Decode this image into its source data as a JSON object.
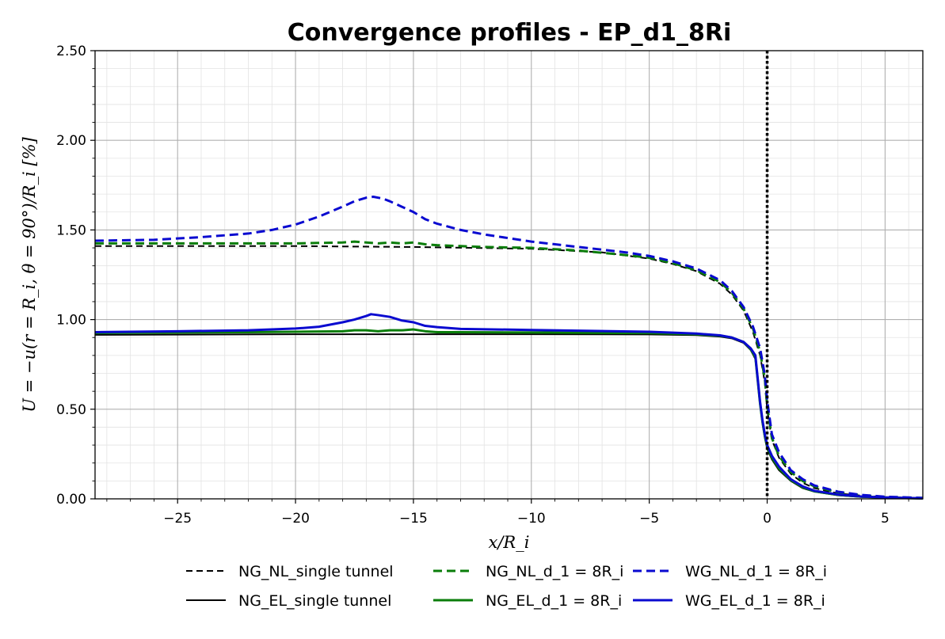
{
  "chart_data": {
    "type": "line",
    "title": "Convergence profiles - EP_d1_8Ri",
    "xlabel": "x/R_i",
    "ylabel": "U = −u(r = R_i, θ = 90°)/R_i [%]",
    "xlim": [
      -28.5,
      6.6
    ],
    "ylim": [
      0,
      2.5
    ],
    "x_ticks": [
      -25,
      -20,
      -15,
      -10,
      -5,
      0,
      5
    ],
    "x_tick_labels": [
      "−25",
      "−20",
      "−15",
      "−10",
      "−5",
      "0",
      "5"
    ],
    "y_ticks": [
      0,
      0.5,
      1.0,
      1.5,
      2.0,
      2.5
    ],
    "y_tick_labels": [
      "0.00",
      "0.50",
      "1.00",
      "1.50",
      "2.00",
      "2.50"
    ],
    "grid": "major and minor",
    "vline": {
      "x": 0,
      "style": "dotted",
      "color": "#000000"
    },
    "legend": {
      "position": "bottom-center",
      "columns": 3
    },
    "series": [
      {
        "name": "NG_NL_single tunnel",
        "color": "#000000",
        "style": "dashed",
        "width": 2,
        "x": [
          -28.5,
          -20,
          -15,
          -10,
          -7,
          -5,
          -4,
          -3,
          -2,
          -1.5,
          -1,
          -0.6,
          -0.3,
          -0.1,
          0,
          0.2,
          0.5,
          1,
          1.5,
          2,
          3,
          4,
          5,
          6.6
        ],
        "y": [
          1.41,
          1.41,
          1.405,
          1.395,
          1.375,
          1.34,
          1.31,
          1.27,
          1.2,
          1.14,
          1.05,
          0.93,
          0.8,
          0.65,
          0.5,
          0.33,
          0.23,
          0.14,
          0.09,
          0.06,
          0.03,
          0.018,
          0.01,
          0.004
        ]
      },
      {
        "name": "NG_EL_single tunnel",
        "color": "#000000",
        "style": "solid",
        "width": 2,
        "x": [
          -28.5,
          -20,
          -10,
          -5,
          -3,
          -2,
          -1.5,
          -1,
          -0.7,
          -0.5,
          -0.4,
          -0.3,
          -0.2,
          -0.1,
          0,
          0.2,
          0.5,
          1,
          1.5,
          2,
          3,
          4,
          5,
          6.6
        ],
        "y": [
          0.915,
          0.918,
          0.918,
          0.917,
          0.913,
          0.905,
          0.895,
          0.87,
          0.83,
          0.78,
          0.65,
          0.52,
          0.42,
          0.34,
          0.28,
          0.22,
          0.16,
          0.1,
          0.06,
          0.04,
          0.02,
          0.01,
          0.006,
          0.002
        ]
      },
      {
        "name": "NG_NL_d_1 = 8R_i",
        "color": "#0a7d0a",
        "style": "dashed",
        "width": 3,
        "x": [
          -28.5,
          -25,
          -22,
          -20,
          -18,
          -17.5,
          -17,
          -16.5,
          -16,
          -15.5,
          -15,
          -14.5,
          -14,
          -13,
          -12,
          -10,
          -8,
          -6,
          -5,
          -4,
          -3,
          -2,
          -1.5,
          -1,
          -0.6,
          -0.3,
          -0.1,
          0,
          0.2,
          0.5,
          1,
          1.5,
          2,
          3,
          4,
          5,
          6.6
        ],
        "y": [
          1.425,
          1.425,
          1.425,
          1.425,
          1.43,
          1.435,
          1.43,
          1.425,
          1.43,
          1.425,
          1.43,
          1.42,
          1.415,
          1.41,
          1.405,
          1.4,
          1.385,
          1.36,
          1.345,
          1.315,
          1.275,
          1.21,
          1.15,
          1.06,
          0.95,
          0.82,
          0.67,
          0.52,
          0.34,
          0.24,
          0.15,
          0.1,
          0.07,
          0.035,
          0.02,
          0.01,
          0.005
        ]
      },
      {
        "name": "NG_EL_d_1 = 8R_i",
        "color": "#0a7d0a",
        "style": "solid",
        "width": 3,
        "x": [
          -28.5,
          -25,
          -22,
          -20,
          -18,
          -17.5,
          -17,
          -16.5,
          -16,
          -15.5,
          -15,
          -14.5,
          -14,
          -13,
          -10,
          -5,
          -3,
          -2,
          -1.5,
          -1,
          -0.7,
          -0.5,
          -0.4,
          -0.3,
          -0.2,
          -0.1,
          0,
          0.2,
          0.5,
          1,
          1.5,
          2,
          3,
          4,
          5,
          6.6
        ],
        "y": [
          0.925,
          0.928,
          0.93,
          0.932,
          0.935,
          0.94,
          0.94,
          0.935,
          0.94,
          0.94,
          0.945,
          0.935,
          0.93,
          0.93,
          0.928,
          0.925,
          0.918,
          0.91,
          0.9,
          0.875,
          0.835,
          0.79,
          0.66,
          0.53,
          0.43,
          0.35,
          0.29,
          0.23,
          0.17,
          0.105,
          0.065,
          0.042,
          0.022,
          0.012,
          0.007,
          0.002
        ]
      },
      {
        "name": "WG_NL_d_1 = 8R_i",
        "color": "#0a0ad0",
        "style": "dashed",
        "width": 3,
        "x": [
          -28.5,
          -26,
          -24,
          -22,
          -21,
          -20,
          -19,
          -18,
          -17.5,
          -17,
          -16.7,
          -16.3,
          -16,
          -15.5,
          -15,
          -14.5,
          -14,
          -13,
          -12,
          -10,
          -8,
          -6,
          -5,
          -4,
          -3,
          -2,
          -1.5,
          -1,
          -0.6,
          -0.3,
          -0.1,
          0,
          0.2,
          0.5,
          1,
          1.5,
          2,
          3,
          4,
          5,
          6.6
        ],
        "y": [
          1.44,
          1.445,
          1.46,
          1.48,
          1.5,
          1.53,
          1.575,
          1.63,
          1.66,
          1.68,
          1.685,
          1.675,
          1.66,
          1.63,
          1.6,
          1.56,
          1.535,
          1.5,
          1.475,
          1.435,
          1.405,
          1.375,
          1.355,
          1.325,
          1.285,
          1.22,
          1.16,
          1.07,
          0.96,
          0.84,
          0.69,
          0.55,
          0.36,
          0.26,
          0.16,
          0.11,
          0.075,
          0.04,
          0.022,
          0.012,
          0.005
        ]
      },
      {
        "name": "WG_EL_d_1 = 8R_i",
        "color": "#0a0ad0",
        "style": "solid",
        "width": 3,
        "x": [
          -28.5,
          -25,
          -22,
          -20,
          -19,
          -18,
          -17.5,
          -17,
          -16.8,
          -16.5,
          -16,
          -15.5,
          -15,
          -14.5,
          -14,
          -13,
          -10,
          -5,
          -3,
          -2,
          -1.5,
          -1,
          -0.7,
          -0.5,
          -0.4,
          -0.3,
          -0.2,
          -0.1,
          0,
          0.2,
          0.5,
          1,
          1.5,
          2,
          3,
          4,
          5,
          6.6
        ],
        "y": [
          0.93,
          0.935,
          0.94,
          0.95,
          0.96,
          0.985,
          1.0,
          1.02,
          1.03,
          1.025,
          1.015,
          0.995,
          0.985,
          0.965,
          0.958,
          0.948,
          0.942,
          0.932,
          0.922,
          0.912,
          0.9,
          0.875,
          0.84,
          0.8,
          0.67,
          0.54,
          0.44,
          0.36,
          0.3,
          0.24,
          0.18,
          0.11,
          0.07,
          0.045,
          0.024,
          0.013,
          0.008,
          0.003
        ]
      }
    ]
  }
}
